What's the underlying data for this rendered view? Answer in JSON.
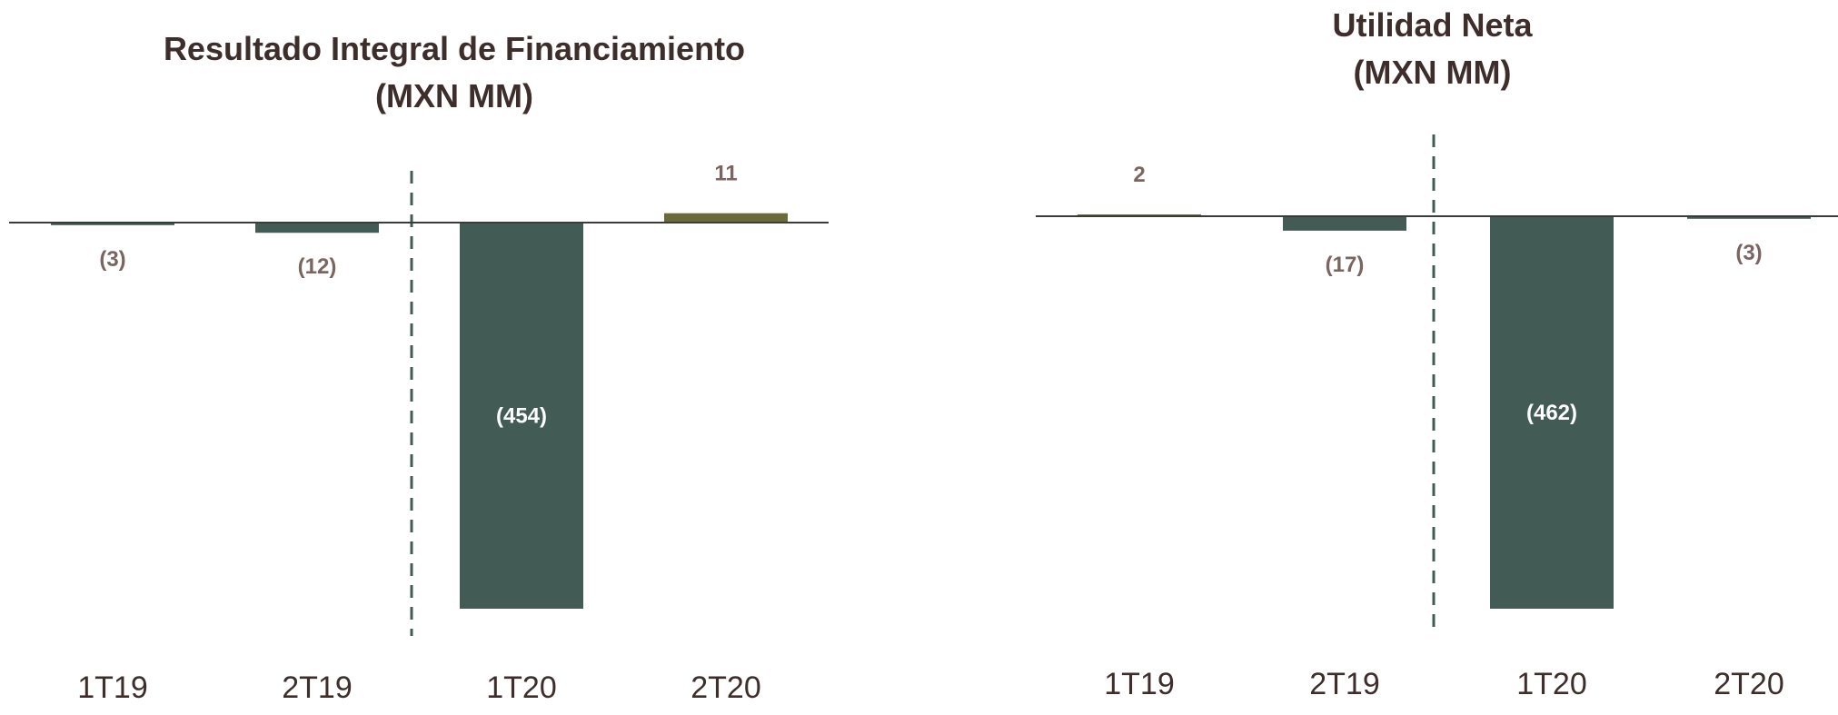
{
  "colors": {
    "negative_bar": "#435b55",
    "positive_bar": "#6b6b3a",
    "label_dark": "#7a6560",
    "label_light": "#ffffff",
    "baseline": "#3b3b3b",
    "divider": "#435b55",
    "title": "#3d2e2b"
  },
  "chart_data": [
    {
      "type": "bar",
      "title": "Resultado Integral de Financiamiento",
      "subtitle": "(MXN MM)",
      "categories": [
        "1T19",
        "2T19",
        "1T20",
        "2T20"
      ],
      "values": [
        -3,
        -12,
        -454,
        11
      ],
      "value_labels": [
        "(3)",
        "(12)",
        "(454)",
        "11"
      ],
      "xlabel": "",
      "ylabel": "",
      "ylim": [
        -454,
        11
      ],
      "grid": false,
      "legend": "none",
      "divider_after_index": 1
    },
    {
      "type": "bar",
      "title": "Utilidad Neta",
      "subtitle": "(MXN MM)",
      "categories": [
        "1T19",
        "2T19",
        "1T20",
        "2T20"
      ],
      "values": [
        2,
        -17,
        -462,
        -3
      ],
      "value_labels": [
        "2",
        "(17)",
        "(462)",
        "(3)"
      ],
      "xlabel": "",
      "ylabel": "",
      "ylim": [
        -462,
        2
      ],
      "grid": false,
      "legend": "none",
      "divider_after_index": 1
    }
  ]
}
